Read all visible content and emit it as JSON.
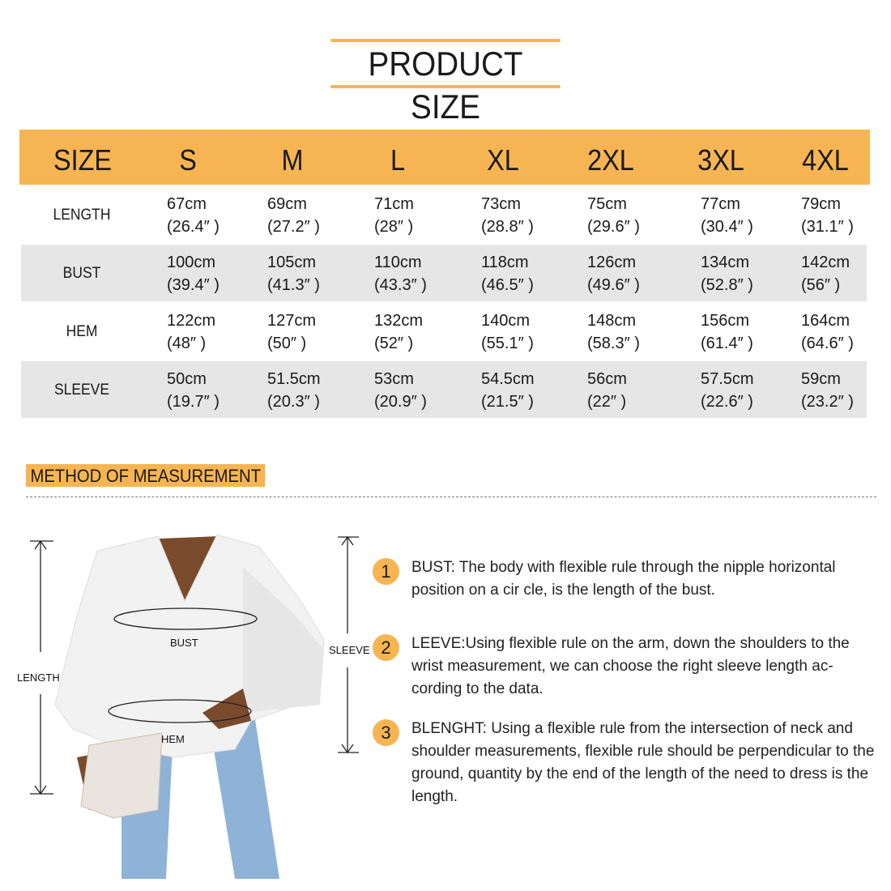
{
  "title": "PRODUCT SIZE",
  "table": {
    "headers": [
      "SIZE",
      "S",
      "M",
      "L",
      "XL",
      "2XL",
      "3XL",
      "4XL"
    ],
    "rows": [
      {
        "label": "LENGTH",
        "cells": [
          [
            "67cm",
            "(26.4″ )"
          ],
          [
            "69cm",
            "(27.2″ )"
          ],
          [
            "71cm",
            "(28″ )"
          ],
          [
            "73cm",
            "(28.8″ )"
          ],
          [
            "75cm",
            "(29.6″ )"
          ],
          [
            "77cm",
            "(30.4″ )"
          ],
          [
            "79cm",
            "(31.1″ )"
          ]
        ]
      },
      {
        "label": "BUST",
        "cells": [
          [
            "100cm",
            "(39.4″ )"
          ],
          [
            "105cm",
            "(41.3″ )"
          ],
          [
            "110cm",
            "(43.3″ )"
          ],
          [
            "118cm",
            "(46.5″ )"
          ],
          [
            "126cm",
            "(49.6″ )"
          ],
          [
            "134cm",
            "(52.8″ )"
          ],
          [
            "142cm",
            "(56″ )"
          ]
        ]
      },
      {
        "label": "HEM",
        "cells": [
          [
            "122cm",
            "(48″ )"
          ],
          [
            "127cm",
            "(50″ )"
          ],
          [
            "132cm",
            "(52″ )"
          ],
          [
            "140cm",
            "(55.1″ )"
          ],
          [
            "148cm",
            "(58.3″ )"
          ],
          [
            "156cm",
            "(61.4″ )"
          ],
          [
            "164cm",
            "(64.6″ )"
          ]
        ]
      },
      {
        "label": "SLEEVE",
        "cells": [
          [
            "50cm",
            "(19.7″ )"
          ],
          [
            "51.5cm",
            "(20.3″ )"
          ],
          [
            "53cm",
            "(20.9″ )"
          ],
          [
            "54.5cm",
            "(21.5″ )"
          ],
          [
            "56cm",
            "(22″ )"
          ],
          [
            "57.5cm",
            "(22.6″ )"
          ],
          [
            "59cm",
            "(23.2″ )"
          ]
        ]
      }
    ]
  },
  "method": {
    "heading": "METHOD OF MEASUREMENT",
    "diagram_labels": {
      "length": "LENGTH",
      "bust": "BUST",
      "hem": "HEM",
      "sleeve": "SLEEVE"
    },
    "items": [
      {
        "num": "1",
        "text": "BUST: The body with flexible rule through the nipple horizontal position on a cir   cle, is the length of the bust."
      },
      {
        "num": "2",
        "text": "LEEVE:Using flexible rule on the arm, down the shoulders to the wrist measurement, we can choose the right sleeve length ac-cording to the data."
      },
      {
        "num": "3",
        "text": "BLENGHT: Using a flexible rule from the intersection of neck and shoulder measurements, flexible rule should be perpendicular to the ground, quantity by the end of the length of the need to dress is the length."
      }
    ]
  },
  "colors": {
    "accent": "#f6b552",
    "row_gray": "#e6e6e6"
  }
}
